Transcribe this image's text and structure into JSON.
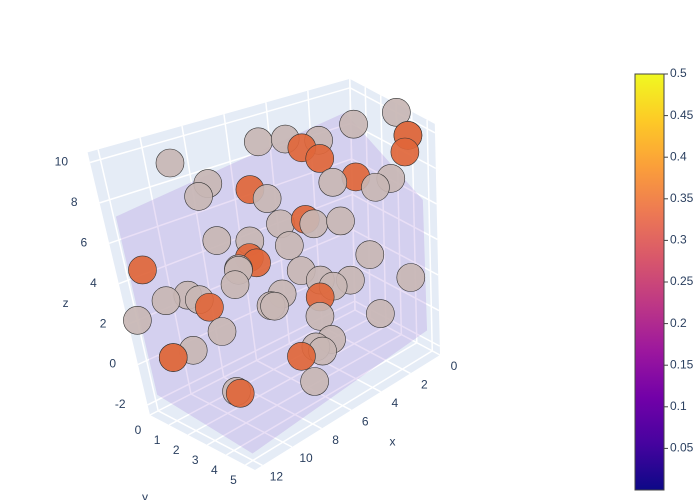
{
  "chart_data": {
    "type": "scatter3d",
    "xlabel": "x",
    "ylabel": "y",
    "zlabel": "z",
    "xlim": [
      0,
      12.5
    ],
    "ylim": [
      0,
      5.5
    ],
    "zlim": [
      -2.5,
      10.5
    ],
    "xticks": [
      0,
      2,
      4,
      6,
      8,
      10,
      12
    ],
    "yticks": [
      0,
      1,
      2,
      3,
      4,
      5
    ],
    "zticks": [
      -2,
      0,
      2,
      4,
      6,
      8,
      10
    ],
    "grid": true,
    "series": [
      {
        "color": "#c8b6b4",
        "x": [
          2,
          4,
          6,
          8,
          10,
          1,
          3,
          5,
          7,
          9,
          11,
          2,
          4,
          6,
          8,
          10,
          12,
          1,
          3,
          5,
          7,
          9,
          11,
          0,
          2,
          4,
          6,
          8,
          10,
          12,
          3,
          5,
          7,
          9,
          1,
          11,
          6,
          4,
          8,
          2,
          10,
          5,
          7,
          9,
          3
        ],
        "y": [
          0.5,
          1,
          2,
          3,
          4,
          5,
          4.5,
          3.5,
          2.5,
          1.5,
          0.5,
          5,
          4,
          3,
          2,
          1,
          0,
          1.5,
          2.5,
          3.5,
          4.5,
          5,
          0.8,
          3,
          2,
          1.2,
          4.2,
          0.3,
          2.8,
          4,
          5.2,
          0.6,
          3.3,
          2.2,
          4.8,
          1.8,
          5.4,
          2.7,
          1,
          3.8,
          4.4,
          1.4,
          4.9,
          0.2,
          1
        ],
        "z": [
          8,
          9,
          7,
          6,
          5,
          10,
          4,
          3,
          2,
          1,
          0,
          8,
          6,
          5,
          4,
          3,
          2,
          9,
          7,
          6,
          -1,
          4,
          3,
          10,
          1,
          2,
          0,
          7,
          -1,
          5,
          8,
          9,
          3,
          6,
          2,
          1,
          4,
          -1,
          8,
          0,
          6,
          5,
          1,
          9,
          -1
        ]
      },
      {
        "color": "#e0663a",
        "x": [
          1,
          3,
          5,
          7,
          9,
          11,
          2,
          6,
          10,
          4,
          8,
          12,
          0,
          6,
          9
        ],
        "y": [
          5,
          4,
          3,
          2,
          1,
          0.5,
          0.5,
          4.5,
          3,
          2,
          5,
          1,
          3.5,
          1,
          4
        ],
        "z": [
          10,
          8,
          6,
          4,
          2,
          0,
          7,
          3,
          -1,
          9,
          1,
          5,
          8,
          7,
          6
        ]
      }
    ],
    "colorscale": [
      "#0d0887",
      "#46039f",
      "#7201a8",
      "#9c179e",
      "#bd3786",
      "#d8576b",
      "#ed7953",
      "#fb9f3a",
      "#fdca26",
      "#f0f921"
    ],
    "clim": [
      0,
      0.5
    ],
    "cticks": [
      0.05,
      0.1,
      0.15,
      0.2,
      0.25,
      0.3,
      0.35,
      0.4,
      0.45,
      0.5
    ]
  }
}
